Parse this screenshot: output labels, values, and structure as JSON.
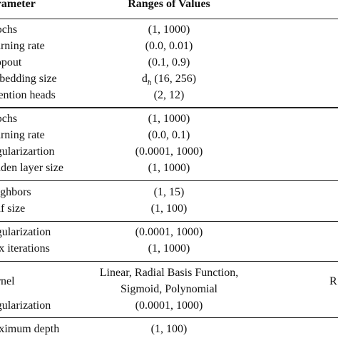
{
  "header": {
    "parameter": "Parameter",
    "ranges": "Ranges of Values"
  },
  "groups": [
    {
      "rows": [
        {
          "parameter": "Epochs",
          "range": "(1, 1000)"
        },
        {
          "parameter": "Learning rate",
          "range": "(0.0, 0.01)"
        },
        {
          "parameter": "Dropout",
          "range": "(0.1, 0.9)"
        },
        {
          "parameter": "Embedding size",
          "range_main": "d",
          "range_sub": "h",
          "range_rest": " (16, 256)"
        },
        {
          "parameter": "Attention heads",
          "range": "(2, 12)"
        }
      ]
    },
    {
      "rows": [
        {
          "parameter": "Epochs",
          "range": "(1, 1000)"
        },
        {
          "parameter": "Learning rate",
          "range": "(0.0, 0.1)"
        },
        {
          "parameter": "Regularizartion",
          "range": "(0.0001, 1000)"
        },
        {
          "parameter": "Hidden layer size",
          "range": "(1, 1000)"
        }
      ]
    },
    {
      "rows": [
        {
          "parameter": "Neighbors",
          "range": "(1, 15)"
        },
        {
          "parameter": "Leaf size",
          "range": "(1, 100)"
        }
      ]
    },
    {
      "rows": [
        {
          "parameter": "Regularization",
          "range": "(0.0001, 1000)"
        },
        {
          "parameter": "Max iterations",
          "range": "(1, 1000)"
        }
      ]
    },
    {
      "rows": [
        {
          "parameter": "Kernel",
          "range_line1": "Linear, Radial Basis Function,",
          "range_line2": "Sigmoid, Polynomial",
          "right_fragment": "R"
        },
        {
          "parameter": "Regularization",
          "range": "(0.0001, 1000)"
        }
      ]
    },
    {
      "rows": [
        {
          "parameter": "Maximum depth",
          "range": "(1, 100)"
        }
      ]
    }
  ]
}
